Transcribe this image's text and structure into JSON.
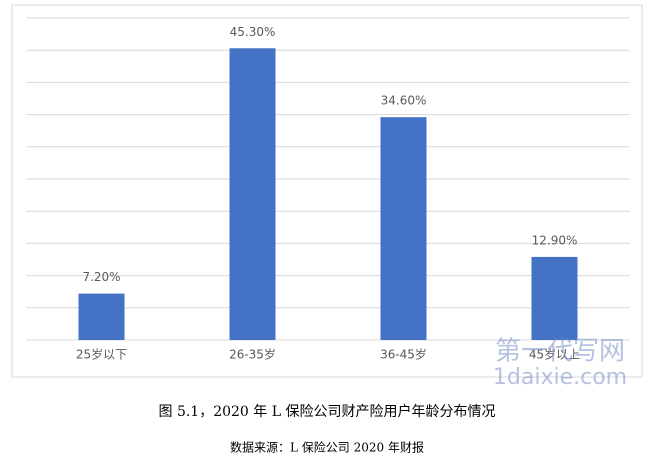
{
  "chart_data": {
    "type": "bar",
    "categories": [
      "25岁以下",
      "26-35岁",
      "36-45岁",
      "45岁以上"
    ],
    "values": [
      7.2,
      45.3,
      34.6,
      12.9
    ],
    "value_labels": [
      "7.20%",
      "45.30%",
      "34.60%",
      "12.90%"
    ],
    "color": "#4472c4",
    "ylim": [
      0,
      50
    ],
    "yticks": [
      0,
      5,
      10,
      15,
      20,
      25,
      30,
      35,
      40,
      45,
      50
    ],
    "grid": true
  },
  "caption": "图 5.1，2020 年 L 保险公司财产险用户年龄分布情况",
  "source": "数据来源：L 保险公司 2020 年财报",
  "watermark": [
    "第一代写网",
    "1daixie.com"
  ]
}
